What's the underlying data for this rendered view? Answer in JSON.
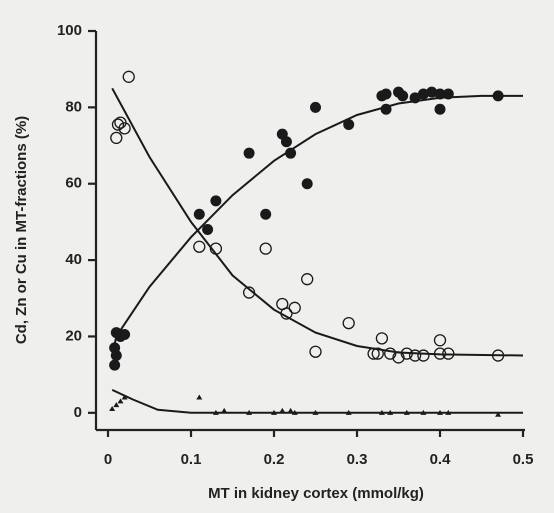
{
  "chart_data": {
    "type": "scatter",
    "x_label": "MT in kidney cortex (mmol/kg)",
    "y_label": "Cd, Zn or Cu in MT-fractions (%)",
    "xlim": [
      0,
      0.5
    ],
    "ylim": [
      -4.5,
      100
    ],
    "xticks": [
      0,
      0.1,
      0.2,
      0.3,
      0.4,
      0.5
    ],
    "yticks": [
      0,
      20,
      40,
      60,
      80,
      100
    ],
    "color": "#1a1a1a",
    "series": [
      {
        "marker": "filled",
        "x": [
          0.01,
          0.015,
          0.02,
          0.008,
          0.01,
          0.008,
          0.11,
          0.12,
          0.13,
          0.17,
          0.19,
          0.21,
          0.215,
          0.22,
          0.24,
          0.25,
          0.29,
          0.33,
          0.335,
          0.335,
          0.35,
          0.355,
          0.37,
          0.38,
          0.39,
          0.4,
          0.4,
          0.41,
          0.47
        ],
        "values": [
          21,
          20,
          20.5,
          17,
          15,
          12.5,
          52,
          48,
          55.5,
          68,
          52,
          73,
          71,
          68,
          60,
          80,
          75.5,
          83,
          83.5,
          79.5,
          84,
          83,
          82.5,
          83.5,
          84,
          83.5,
          79.5,
          83.5,
          83
        ]
      },
      {
        "marker": "open",
        "x": [
          0.01,
          0.012,
          0.015,
          0.02,
          0.025,
          0.11,
          0.13,
          0.19,
          0.17,
          0.21,
          0.215,
          0.225,
          0.24,
          0.25,
          0.29,
          0.32,
          0.325,
          0.33,
          0.34,
          0.35,
          0.36,
          0.37,
          0.38,
          0.4,
          0.4,
          0.41,
          0.47
        ],
        "values": [
          72,
          75.5,
          76,
          74.5,
          88,
          43.5,
          43,
          43,
          31.5,
          28.5,
          26,
          27.5,
          35,
          16,
          23.5,
          15.5,
          15.5,
          19.5,
          15.5,
          14.5,
          15.5,
          15,
          15,
          19,
          15.5,
          15.5,
          15
        ]
      },
      {
        "marker": "triangle",
        "x": [
          0.005,
          0.01,
          0.015,
          0.02,
          0.11,
          0.13,
          0.14,
          0.17,
          0.2,
          0.21,
          0.22,
          0.225,
          0.25,
          0.29,
          0.33,
          0.34,
          0.36,
          0.38,
          0.4,
          0.41,
          0.47
        ],
        "values": [
          1,
          2,
          3,
          4,
          4,
          0,
          0.5,
          0,
          0,
          0.5,
          0.5,
          0,
          0,
          0,
          0,
          0,
          0,
          0,
          0,
          0,
          -0.5
        ]
      }
    ],
    "fits": [
      {
        "x": [
          0.005,
          0.01,
          0.05,
          0.1,
          0.15,
          0.2,
          0.25,
          0.3,
          0.35,
          0.4,
          0.45,
          0.5
        ],
        "values": [
          15,
          20,
          33,
          46,
          57,
          66,
          73,
          78,
          81,
          82.5,
          83,
          83
        ]
      },
      {
        "x": [
          0.005,
          0.05,
          0.1,
          0.15,
          0.2,
          0.25,
          0.3,
          0.35,
          0.4,
          0.5
        ],
        "values": [
          85,
          67,
          50,
          36,
          27,
          21,
          17.5,
          15.8,
          15.3,
          15
        ]
      },
      {
        "x": [
          0.005,
          0.03,
          0.06,
          0.1,
          0.5
        ],
        "values": [
          6,
          3.5,
          0.8,
          0,
          0
        ]
      }
    ]
  }
}
